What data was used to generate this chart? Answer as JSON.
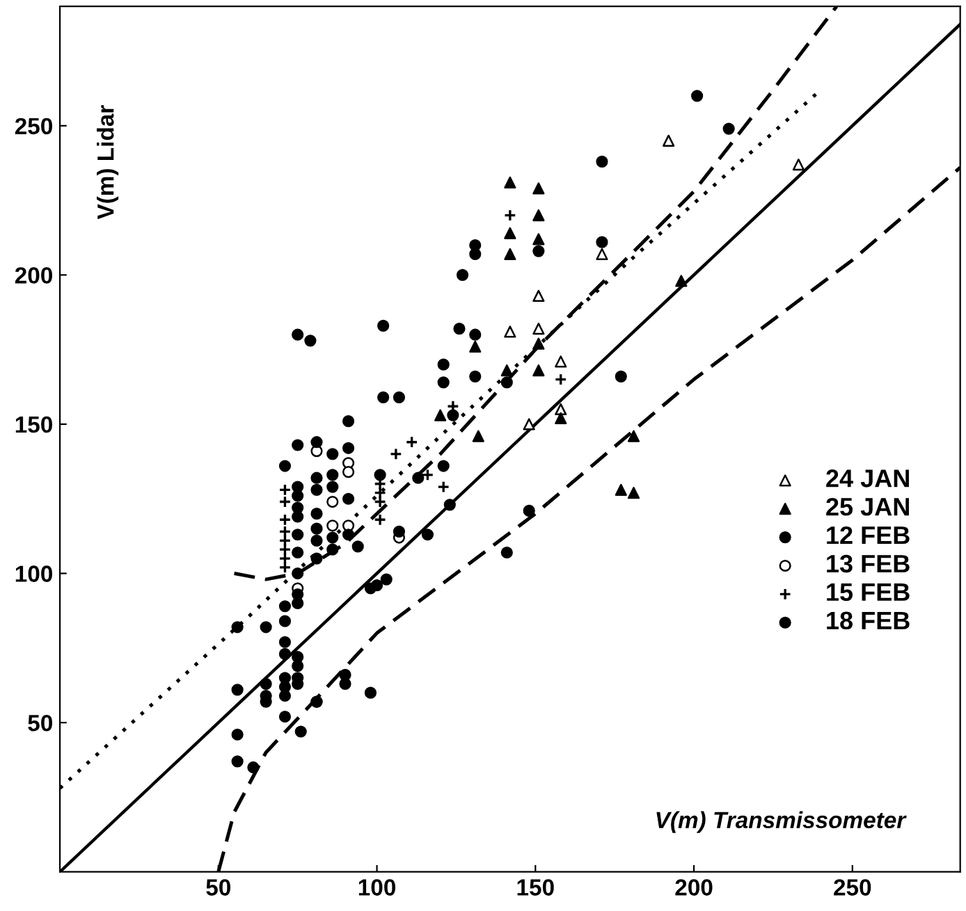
{
  "chart_data": {
    "type": "scatter",
    "xlabel": "V(m) Transmissometer",
    "ylabel": "V(m) Lidar",
    "xlim": [
      0,
      284
    ],
    "ylim": [
      0,
      290
    ],
    "xticks": [
      50,
      100,
      150,
      200,
      250
    ],
    "yticks": [
      50,
      100,
      150,
      200,
      250
    ],
    "grid": false,
    "legend": "right",
    "series": [
      {
        "name": "24 JAN",
        "color": "#ffffff",
        "marker": "triangle",
        "x": [
          233,
          192,
          171,
          151,
          142,
          151,
          158,
          158,
          148
        ],
        "values": [
          237,
          245,
          207,
          193,
          181,
          182,
          171,
          155,
          150
        ]
      },
      {
        "name": "25 JAN",
        "color": "#000000",
        "marker": "triangle",
        "x": [
          142,
          151,
          151,
          142,
          151,
          142,
          131,
          151,
          141,
          151,
          120,
          132,
          158,
          181,
          177,
          181,
          196
        ],
        "values": [
          231,
          229,
          220,
          214,
          212,
          207,
          176,
          177,
          168,
          168,
          153,
          146,
          152,
          146,
          128,
          127,
          198
        ]
      },
      {
        "name": "12 FEB",
        "color": "#000000",
        "marker": "circle",
        "x": [
          201,
          211,
          171,
          127,
          102,
          126,
          121,
          102,
          107,
          177,
          75,
          100,
          123,
          116,
          148,
          141,
          98,
          103,
          56,
          65,
          56,
          56,
          56,
          76,
          98
        ],
        "values": [
          260,
          249,
          238,
          200,
          183,
          182,
          170,
          159,
          159,
          166,
          180,
          96,
          123,
          113,
          121,
          107,
          95,
          98,
          82,
          82,
          61,
          46,
          37,
          47,
          60
        ]
      },
      {
        "name": "13 FEB",
        "color": "#ffffff",
        "marker": "circle",
        "x": [
          75,
          81,
          86,
          86,
          91,
          91,
          91,
          107
        ],
        "values": [
          95,
          141,
          124,
          116,
          137,
          134,
          116,
          112
        ]
      },
      {
        "name": "15 FEB",
        "color": "#000000",
        "marker": "cross",
        "x": [
          142,
          124,
          158,
          121,
          111,
          106,
          116,
          71,
          71,
          71,
          71,
          71,
          71,
          71,
          71,
          101,
          101,
          101,
          101
        ],
        "values": [
          220,
          156,
          165,
          129,
          144,
          140,
          133,
          128,
          124,
          118,
          114,
          111,
          108,
          105,
          102,
          130,
          127,
          124,
          118
        ]
      },
      {
        "name": "18 FEB",
        "color": "#000000",
        "marker": "circle",
        "x": [
          151,
          131,
          131,
          171,
          131,
          141,
          121,
          131,
          124,
          121,
          113,
          107,
          71,
          71,
          71,
          71,
          71,
          71,
          71,
          71,
          71,
          75,
          75,
          75,
          75,
          75,
          75,
          75,
          75,
          75,
          75,
          75,
          75,
          75,
          75,
          81,
          81,
          81,
          81,
          81,
          81,
          81,
          81,
          86,
          86,
          86,
          86,
          86,
          91,
          91,
          91,
          91,
          101,
          94,
          65,
          65,
          65,
          61,
          81,
          90,
          90,
          79
        ],
        "values": [
          208,
          210,
          207,
          211,
          180,
          164,
          164,
          166,
          153,
          136,
          132,
          114,
          136,
          89,
          84,
          77,
          73,
          65,
          62,
          59,
          52,
          143,
          129,
          126,
          122,
          119,
          113,
          107,
          100,
          93,
          90,
          72,
          69,
          65,
          63,
          144,
          132,
          128,
          120,
          115,
          111,
          105,
          57,
          140,
          133,
          129,
          112,
          108,
          151,
          142,
          125,
          113,
          133,
          109,
          63,
          59,
          57,
          35,
          57,
          66,
          63,
          178
        ]
      },
      {
        "type": "line",
        "color": "#000000",
        "line_style": "solid",
        "x": [
          0,
          284
        ],
        "values": [
          0,
          284
        ]
      },
      {
        "type": "line",
        "color": "#000000",
        "line_style": "dotted",
        "x": [
          0,
          60,
          120,
          180,
          240
        ],
        "values": [
          28,
          86,
          146,
          205,
          262
        ]
      },
      {
        "type": "line",
        "color": "#000000",
        "line_style": "dashed",
        "x": [
          55,
          65,
          75,
          90,
          120,
          150,
          200,
          225,
          245
        ],
        "values": [
          100,
          98,
          100,
          110,
          140,
          175,
          228,
          262,
          290
        ]
      },
      {
        "type": "line",
        "color": "#000000",
        "line_style": "dashed",
        "x": [
          50,
          55,
          65,
          80,
          100,
          150,
          200,
          250,
          284
        ],
        "values": [
          0,
          20,
          40,
          57,
          80,
          120,
          165,
          205,
          236
        ]
      }
    ]
  }
}
